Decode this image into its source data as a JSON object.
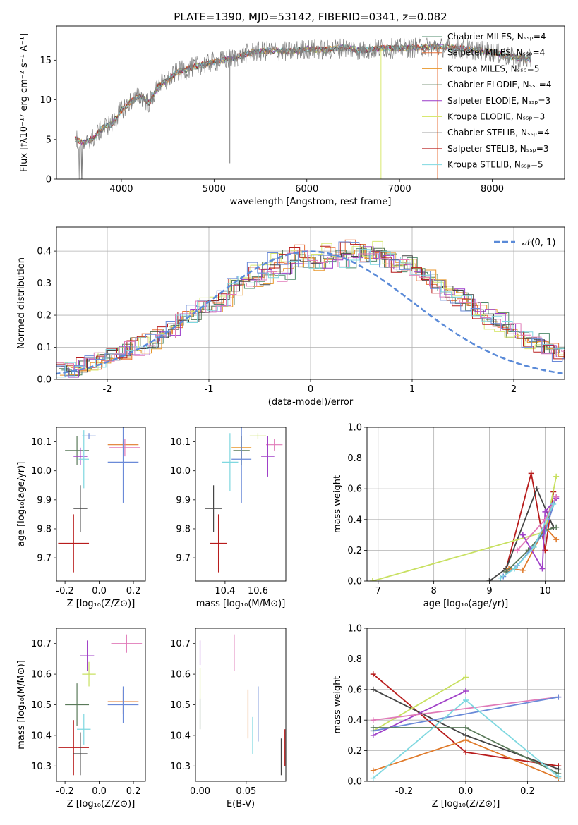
{
  "colors": {
    "cM": "#4e8a6a",
    "sM": "#e8703a",
    "kM": "#e8962a",
    "cE": "#5a7a5a",
    "sE": "#9a3ac8",
    "kE": "#d8e870",
    "cS": "#444444",
    "sS": "#b81c1c",
    "kS": "#7fd8e0",
    "models": [
      "#4e8a6a",
      "#e07a2a",
      "#e8962a",
      "#5a7a5a",
      "#a040c8",
      "#c8e060",
      "#444444",
      "#b81c1c",
      "#7fd8e0",
      "#6a8ad8",
      "#e07ab8"
    ],
    "normal": "#5a8ad8"
  },
  "chart_data": [
    {
      "type": "line",
      "title": "PLATE=1390, MJD=53142, FIBERID=0341, z=0.082",
      "xlabel": "wavelength [Angstrom, rest frame]",
      "ylabel": "Flux [fλ10⁻¹⁷ erg cm⁻² s⁻¹ A⁻¹]",
      "xlim": [
        3300,
        8780
      ],
      "ylim": [
        0,
        19.3
      ],
      "xticks": [
        4000,
        5000,
        6000,
        7000,
        8000
      ],
      "yticks": [
        0,
        5,
        10,
        15
      ],
      "legend": [
        "Chabrier MILES, N_SSP=4",
        "Salpeter MILES, N_SSP=4",
        "Kroupa MILES, N_SSP=5",
        "Chabrier ELODIE, N_SSP=4",
        "Salpeter ELODIE, N_SSP=3",
        "Kroupa ELODIE, N_SSP=3",
        "Chabrier STELIB, N_SSP=4",
        "Salpeter STELIB, N_SSP=3",
        "Kroupa STELIB, N_SSP=5"
      ],
      "legend_placement": "right",
      "continuum": {
        "x": [
          3500,
          3600,
          3700,
          3800,
          3900,
          4000,
          4100,
          4200,
          4300,
          4400,
          4500,
          4600,
          4800,
          5000,
          5200,
          5400,
          5600,
          5800,
          6000,
          6200,
          6400,
          6600,
          6800,
          7000,
          7200,
          7400,
          7600,
          7800,
          8000,
          8200,
          8400
        ],
        "y": [
          5.0,
          4.6,
          5.2,
          6.5,
          7.0,
          8.7,
          9.8,
          10.5,
          9.6,
          11.8,
          12.4,
          13.5,
          14.2,
          14.8,
          15.2,
          16.0,
          16.2,
          16.1,
          16.4,
          16.3,
          16.6,
          16.2,
          16.5,
          16.5,
          16.6,
          16.7,
          16.5,
          16.3,
          16.0,
          15.4,
          15.1
        ]
      },
      "dropouts": [
        {
          "x": 5170,
          "y": 2.0
        },
        {
          "x": 6800,
          "y": 0
        },
        {
          "x": 7410,
          "y": 0
        }
      ]
    },
    {
      "type": "bar",
      "subtype": "step-histogram",
      "xlabel": "(data-model)/error",
      "ylabel": "Normed distribution",
      "xlim": [
        -2.5,
        2.5
      ],
      "ylim": [
        0,
        0.475
      ],
      "xticks": [
        -2,
        -1,
        0,
        1,
        2
      ],
      "yticks": [
        0.0,
        0.1,
        0.2,
        0.3,
        0.4
      ],
      "grid": true,
      "legend": [
        "𝒩(0, 1)"
      ],
      "legend_placement": "top-right",
      "bin_width": 0.1,
      "series_values": [
        [
          0.032,
          0.03,
          0.04,
          0.05,
          0.06,
          0.08,
          0.09,
          0.1,
          0.09,
          0.12,
          0.145,
          0.15,
          0.18,
          0.2,
          0.23,
          0.22,
          0.25,
          0.28,
          0.3,
          0.29,
          0.32,
          0.34,
          0.33,
          0.37,
          0.38,
          0.36,
          0.37,
          0.38,
          0.37,
          0.39,
          0.39,
          0.38,
          0.38,
          0.36,
          0.37,
          0.34,
          0.33,
          0.3,
          0.28,
          0.26,
          0.24,
          0.22,
          0.2,
          0.19,
          0.17,
          0.15,
          0.14,
          0.12,
          0.1,
          0.09,
          0.08,
          0.06,
          0.05,
          0.04,
          0.04,
          0.03,
          0.03,
          0.025,
          0.02
        ],
        [
          0.028,
          0.035,
          0.045,
          0.052,
          0.065,
          0.075,
          0.085,
          0.11,
          0.12,
          0.13,
          0.15,
          0.17,
          0.19,
          0.21,
          0.235,
          0.25,
          0.27,
          0.3,
          0.32,
          0.34,
          0.35,
          0.37,
          0.38,
          0.4,
          0.37,
          0.39,
          0.4,
          0.38,
          0.41,
          0.42,
          0.39,
          0.41,
          0.37,
          0.35,
          0.36,
          0.33,
          0.32,
          0.29,
          0.26,
          0.25,
          0.23,
          0.21,
          0.18,
          0.17,
          0.15,
          0.13,
          0.12,
          0.11,
          0.09,
          0.08,
          0.07,
          0.06,
          0.05,
          0.04,
          0.035,
          0.03,
          0.025,
          0.02,
          0.018
        ]
      ],
      "normal_curve": {
        "mu": 0,
        "sigma": 1
      }
    },
    {
      "type": "scatter",
      "subtype": "errorbar",
      "xlabel": "Z [log₁₀(Z/Z⊙)]",
      "ylabel": "age  [log₁₀(age/yr)]",
      "xlim": [
        -0.25,
        0.27
      ],
      "ylim": [
        9.62,
        10.15
      ],
      "xticks": [
        -0.2,
        0.0,
        0.2
      ],
      "yticks": [
        9.7,
        9.8,
        9.9,
        10.0,
        10.1
      ],
      "points": [
        {
          "x": -0.06,
          "y": 10.12,
          "xe": 0.04,
          "ye": 0.01,
          "c": 9
        },
        {
          "x": -0.13,
          "y": 10.07,
          "xe": 0.07,
          "ye": 0.05,
          "c": 3
        },
        {
          "x": 0.14,
          "y": 10.09,
          "xe": 0.09,
          "ye": 0.01,
          "c": 1
        },
        {
          "x": 0.15,
          "y": 10.08,
          "xe": 0.09,
          "ye": 0.03,
          "c": 10
        },
        {
          "x": -0.11,
          "y": 10.05,
          "xe": 0.04,
          "ye": 0.03,
          "c": 4
        },
        {
          "x": -0.09,
          "y": 10.04,
          "xe": 0.03,
          "ye": 0.1,
          "c": 8
        },
        {
          "x": 0.14,
          "y": 10.03,
          "xe": 0.09,
          "ye": 0.14,
          "c": 9
        },
        {
          "x": -0.11,
          "y": 9.87,
          "xe": 0.04,
          "ye": 0.08,
          "c": 6
        },
        {
          "x": -0.15,
          "y": 9.75,
          "xe": 0.09,
          "ye": 0.1,
          "c": 7
        }
      ]
    },
    {
      "type": "scatter",
      "subtype": "errorbar",
      "xlabel": "mass [log₁₀(M/M⊙)]",
      "xlim": [
        10.22,
        10.77
      ],
      "ylim": [
        9.62,
        10.15
      ],
      "xticks": [
        10.4,
        10.6
      ],
      "yticks": [
        9.7,
        9.8,
        9.9,
        10.0,
        10.1
      ],
      "points": [
        {
          "x": 10.6,
          "y": 10.12,
          "xe": 0.05,
          "ye": 0.01,
          "c": 5
        },
        {
          "x": 10.7,
          "y": 10.09,
          "xe": 0.05,
          "ye": 0.02,
          "c": 10
        },
        {
          "x": 10.5,
          "y": 10.08,
          "xe": 0.06,
          "ye": 0.04,
          "c": 2
        },
        {
          "x": 10.5,
          "y": 10.07,
          "xe": 0.05,
          "ye": 0.05,
          "c": 3
        },
        {
          "x": 10.66,
          "y": 10.05,
          "xe": 0.04,
          "ye": 0.07,
          "c": 4
        },
        {
          "x": 10.5,
          "y": 10.04,
          "xe": 0.06,
          "ye": 0.15,
          "c": 9
        },
        {
          "x": 10.43,
          "y": 10.03,
          "xe": 0.05,
          "ye": 0.1,
          "c": 8
        },
        {
          "x": 10.33,
          "y": 9.87,
          "xe": 0.05,
          "ye": 0.08,
          "c": 6
        },
        {
          "x": 10.36,
          "y": 9.75,
          "xe": 0.05,
          "ye": 0.1,
          "c": 7
        }
      ]
    },
    {
      "type": "line",
      "xlabel": "age  [log₁₀(age/yr)]",
      "ylabel": "mass weight",
      "xlim": [
        6.8,
        10.35
      ],
      "ylim": [
        0,
        1.0
      ],
      "xticks": [
        7,
        8,
        9,
        10
      ],
      "yticks": [
        0.0,
        0.2,
        0.4,
        0.6,
        0.8,
        1.0
      ],
      "grid": true,
      "series": [
        {
          "c": 7,
          "x": [
            9.3,
            9.75,
            10.0,
            10.15
          ],
          "y": [
            0.08,
            0.7,
            0.2,
            0.58
          ]
        },
        {
          "c": 6,
          "x": [
            9.0,
            9.3,
            9.85,
            10.15
          ],
          "y": [
            0.0,
            0.08,
            0.6,
            0.35
          ]
        },
        {
          "c": 5,
          "x": [
            6.9,
            10.0,
            10.2
          ],
          "y": [
            0.0,
            0.32,
            0.68
          ]
        },
        {
          "c": 1,
          "x": [
            9.35,
            9.6,
            10.0,
            10.2
          ],
          "y": [
            0.08,
            0.07,
            0.35,
            0.27
          ]
        },
        {
          "c": 3,
          "x": [
            9.3,
            9.7,
            10.0,
            10.2
          ],
          "y": [
            0.06,
            0.2,
            0.33,
            0.35
          ]
        },
        {
          "c": 9,
          "x": [
            9.25,
            9.5,
            10.0,
            10.2
          ],
          "y": [
            0.03,
            0.1,
            0.32,
            0.55
          ]
        },
        {
          "c": 4,
          "x": [
            9.6,
            9.95,
            10.0,
            10.2
          ],
          "y": [
            0.3,
            0.08,
            0.45,
            0.54
          ]
        },
        {
          "c": 10,
          "x": [
            9.5,
            10.0,
            10.2
          ],
          "y": [
            0.2,
            0.4,
            0.55
          ]
        },
        {
          "c": 8,
          "x": [
            9.2,
            9.45,
            9.8,
            10.15
          ],
          "y": [
            0.02,
            0.08,
            0.22,
            0.5
          ]
        }
      ]
    },
    {
      "type": "scatter",
      "subtype": "errorbar",
      "xlabel": "Z [log₁₀(Z/Z⊙)]",
      "ylabel": "mass [log₁₀(M/M⊙)]",
      "xlim": [
        -0.25,
        0.27
      ],
      "ylim": [
        10.25,
        10.75
      ],
      "xticks": [
        -0.2,
        0.0,
        0.2
      ],
      "yticks": [
        10.3,
        10.4,
        10.5,
        10.6,
        10.7
      ],
      "points": [
        {
          "x": 0.16,
          "y": 10.7,
          "xe": 0.09,
          "ye": 0.03,
          "c": 10
        },
        {
          "x": -0.07,
          "y": 10.66,
          "xe": 0.04,
          "ye": 0.05,
          "c": 4
        },
        {
          "x": -0.06,
          "y": 10.6,
          "xe": 0.04,
          "ye": 0.04,
          "c": 5
        },
        {
          "x": -0.13,
          "y": 10.5,
          "xe": 0.07,
          "ye": 0.07,
          "c": 3
        },
        {
          "x": 0.14,
          "y": 10.51,
          "xe": 0.09,
          "ye": 0.04,
          "c": 1
        },
        {
          "x": 0.14,
          "y": 10.5,
          "xe": 0.09,
          "ye": 0.06,
          "c": 9
        },
        {
          "x": -0.09,
          "y": 10.42,
          "xe": 0.04,
          "ye": 0.05,
          "c": 8
        },
        {
          "x": -0.15,
          "y": 10.36,
          "xe": 0.09,
          "ye": 0.09,
          "c": 7
        },
        {
          "x": -0.11,
          "y": 10.34,
          "xe": 0.04,
          "ye": 0.07,
          "c": 6
        }
      ]
    },
    {
      "type": "scatter",
      "subtype": "errorbar",
      "xlabel": "E(B-V)",
      "xlim": [
        -0.005,
        0.093
      ],
      "ylim": [
        10.25,
        10.75
      ],
      "xticks": [
        0.0,
        0.05
      ],
      "yticks": [
        10.3,
        10.4,
        10.5,
        10.6,
        10.7
      ],
      "points": [
        {
          "x": 0.0,
          "y": 10.67,
          "ye": 0.04,
          "c": 4
        },
        {
          "x": 0.0,
          "y": 10.57,
          "ye": 0.05,
          "c": 5
        },
        {
          "x": 0.0,
          "y": 10.47,
          "ye": 0.05,
          "c": 3
        },
        {
          "x": 0.037,
          "y": 10.67,
          "ye": 0.06,
          "c": 10
        },
        {
          "x": 0.052,
          "y": 10.47,
          "ye": 0.08,
          "c": 1
        },
        {
          "x": 0.057,
          "y": 10.4,
          "ye": 0.06,
          "c": 8
        },
        {
          "x": 0.063,
          "y": 10.47,
          "ye": 0.09,
          "c": 9
        },
        {
          "x": 0.088,
          "y": 10.33,
          "ye": 0.06,
          "c": 6
        },
        {
          "x": 0.092,
          "y": 10.36,
          "ye": 0.06,
          "c": 7
        }
      ]
    },
    {
      "type": "line",
      "xlabel": "Z [log₁₀(Z/Z⊙)]",
      "ylabel": "mass weight",
      "xlim": [
        -0.32,
        0.32
      ],
      "ylim": [
        0,
        1.0
      ],
      "xticks": [
        -0.2,
        0.0,
        0.2
      ],
      "yticks": [
        0.0,
        0.2,
        0.4,
        0.6,
        0.8,
        1.0
      ],
      "grid": true,
      "series": [
        {
          "c": 7,
          "x": [
            -0.3,
            0.0,
            0.3
          ],
          "y": [
            0.7,
            0.19,
            0.1
          ]
        },
        {
          "c": 6,
          "x": [
            -0.3,
            0.0,
            0.3
          ],
          "y": [
            0.6,
            0.3,
            0.08
          ]
        },
        {
          "c": 5,
          "x": [
            -0.3,
            0.0
          ],
          "y": [
            0.33,
            0.68
          ]
        },
        {
          "c": 4,
          "x": [
            -0.3,
            0.0
          ],
          "y": [
            0.3,
            0.59
          ]
        },
        {
          "c": 10,
          "x": [
            -0.3,
            0.3
          ],
          "y": [
            0.4,
            0.55
          ]
        },
        {
          "c": 9,
          "x": [
            -0.3,
            0.3
          ],
          "y": [
            0.33,
            0.55
          ]
        },
        {
          "c": 3,
          "x": [
            -0.3,
            0.0,
            0.3
          ],
          "y": [
            0.35,
            0.35,
            0.05
          ]
        },
        {
          "c": 1,
          "x": [
            -0.3,
            0.0,
            0.3
          ],
          "y": [
            0.07,
            0.27,
            0.02
          ]
        },
        {
          "c": 8,
          "x": [
            -0.3,
            0.0,
            0.3
          ],
          "y": [
            0.02,
            0.53,
            0.03
          ]
        }
      ]
    }
  ]
}
